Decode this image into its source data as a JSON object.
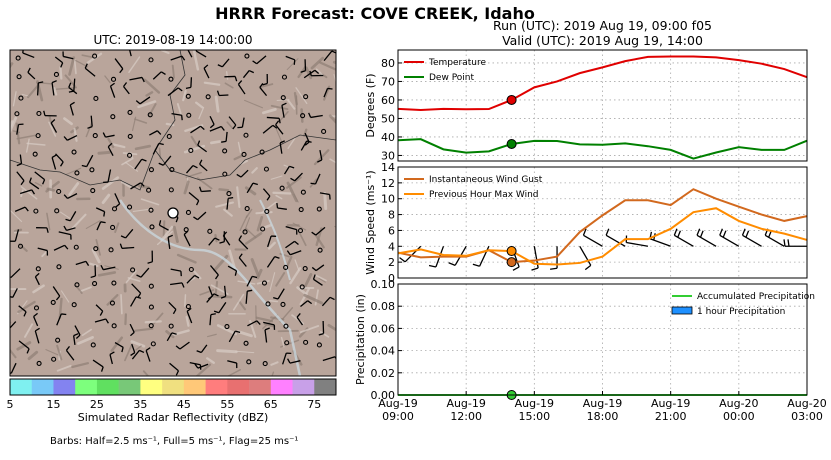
{
  "page": {
    "suptitle": "HRRR Forecast: COVE CREEK, Idaho",
    "run_line": "Run (UTC): 2019 Aug 19, 09:00 f05",
    "valid_line": "Valid (UTC): 2019 Aug 19, 14:00",
    "barbs_note": "Barbs: Half=2.5 ms⁻¹, Full=5 ms⁻¹, Flag=25 ms⁻¹"
  },
  "map": {
    "title": "UTC: 2019-08-19 14:00:00",
    "colorbar_label": "Simulated Radar Reflectivity (dBZ)",
    "colorbar_ticks": [
      "5",
      "15",
      "25",
      "35",
      "45",
      "55",
      "65",
      "75"
    ],
    "colorbar_colors": [
      "#7ff0f0",
      "#79c9f7",
      "#8383f0",
      "#7dff7d",
      "#60e060",
      "#78c878",
      "#ffff80",
      "#f0e080",
      "#ffc878",
      "#ff7d7d",
      "#e87070",
      "#dd7d7d",
      "#ff80ff",
      "#c8a0e8",
      "#808080"
    ],
    "colors": {
      "terrain": "#b9a59b",
      "terrain_light": "#d9cdc6",
      "station": "#ffffff"
    }
  },
  "chart_data": [
    {
      "type": "line",
      "ylabel": "Degrees (F)",
      "ylim": [
        27,
        87
      ],
      "yticks": [
        "30",
        "40",
        "50",
        "60",
        "70",
        "80"
      ],
      "xticklabels": [
        [
          "Aug-19",
          "09:00"
        ],
        [
          "Aug-19",
          "12:00"
        ],
        [
          "Aug-19",
          "15:00"
        ],
        [
          "Aug-19",
          "18:00"
        ],
        [
          "Aug-19",
          "21:00"
        ],
        [
          "Aug-20",
          "00:00"
        ],
        [
          "Aug-20",
          "03:00"
        ]
      ],
      "x_hours": [
        0,
        1,
        2,
        3,
        4,
        5,
        6,
        7,
        8,
        9,
        10,
        11,
        12,
        13,
        14,
        15,
        16,
        17,
        18
      ],
      "grid": true,
      "legend_position": "top-left",
      "series": [
        {
          "name": "Temperature",
          "color": "#e00000",
          "values": [
            55.2,
            54.6,
            55.2,
            55.0,
            55.1,
            60.0,
            66.8,
            70.0,
            74.5,
            77.6,
            81.0,
            83.3,
            83.5,
            83.5,
            83.0,
            81.5,
            79.6,
            76.7,
            72.3
          ],
          "marker_hour": 5,
          "marker_value": 60.0
        },
        {
          "name": "Dew Point",
          "color": "#008000",
          "values": [
            38.2,
            38.8,
            33.3,
            31.5,
            32.2,
            36.2,
            37.9,
            37.8,
            36.0,
            35.8,
            36.5,
            35.0,
            33.0,
            28.3,
            31.6,
            34.5,
            33.0,
            33.0,
            38.0
          ],
          "marker_hour": 5,
          "marker_value": 36.2
        }
      ]
    },
    {
      "type": "line",
      "ylabel": "Wind Speed (ms⁻¹)",
      "ylim": [
        0,
        14
      ],
      "yticks": [
        "0",
        "2",
        "4",
        "6",
        "8",
        "10",
        "12",
        "14"
      ],
      "x_hours": [
        0,
        1,
        2,
        3,
        4,
        5,
        6,
        7,
        8,
        9,
        10,
        11,
        12,
        13,
        14,
        15,
        16,
        17,
        18
      ],
      "grid": true,
      "legend_position": "top-left",
      "series": [
        {
          "name": "Instantaneous Wind Gust",
          "color": "#d2691e",
          "values": [
            3.2,
            2.6,
            2.7,
            2.7,
            3.5,
            2.0,
            2.2,
            2.7,
            5.8,
            7.9,
            9.8,
            9.8,
            9.2,
            11.2,
            10.0,
            9.0,
            8.0,
            7.2,
            7.8
          ],
          "marker_hour": 5,
          "marker_value": 2.0
        },
        {
          "name": "Previous Hour Max Wind",
          "color": "#ff8c00",
          "values": [
            3.1,
            3.6,
            2.9,
            2.8,
            3.5,
            3.4,
            1.8,
            1.7,
            1.9,
            2.7,
            4.9,
            4.9,
            6.2,
            8.3,
            8.8,
            7.2,
            6.2,
            5.6,
            4.8
          ],
          "marker_hour": 5,
          "marker_value": 3.4
        }
      ],
      "barbs": [
        {
          "hour": 1,
          "dir": 225,
          "speed": 5
        },
        {
          "hour": 2,
          "dir": 200,
          "speed": 5
        },
        {
          "hour": 3,
          "dir": 210,
          "speed": 5
        },
        {
          "hour": 4,
          "dir": 205,
          "speed": 5
        },
        {
          "hour": 5,
          "dir": 160,
          "speed": 5
        },
        {
          "hour": 6,
          "dir": 170,
          "speed": 5
        },
        {
          "hour": 7,
          "dir": 180,
          "speed": 5
        },
        {
          "hour": 8,
          "dir": 150,
          "speed": 5
        },
        {
          "hour": 9,
          "dir": 300,
          "speed": 5
        },
        {
          "hour": 10,
          "dir": 300,
          "speed": 5
        },
        {
          "hour": 11,
          "dir": 280,
          "speed": 5
        },
        {
          "hour": 12,
          "dir": 290,
          "speed": 10
        },
        {
          "hour": 13,
          "dir": 300,
          "speed": 10
        },
        {
          "hour": 14,
          "dir": 300,
          "speed": 10
        },
        {
          "hour": 15,
          "dir": 300,
          "speed": 10
        },
        {
          "hour": 16,
          "dir": 300,
          "speed": 10
        },
        {
          "hour": 17,
          "dir": 300,
          "speed": 10
        },
        {
          "hour": 18,
          "dir": 270,
          "speed": 10
        }
      ]
    },
    {
      "type": "bar",
      "ylabel": "Precipitation (in)",
      "ylim": [
        0,
        0.1
      ],
      "yticks": [
        "0.00",
        "0.02",
        "0.04",
        "0.06",
        "0.08",
        "0.10"
      ],
      "x_hours": [
        0,
        1,
        2,
        3,
        4,
        5,
        6,
        7,
        8,
        9,
        10,
        11,
        12,
        13,
        14,
        15,
        16,
        17,
        18
      ],
      "grid": true,
      "legend_position": "top-right",
      "series": [
        {
          "name": "Accumulated Precipitation",
          "color": "#32cd32",
          "values": [
            0,
            0,
            0,
            0,
            0,
            0,
            0,
            0,
            0,
            0,
            0,
            0,
            0,
            0,
            0,
            0,
            0,
            0,
            0
          ],
          "marker_hour": 5,
          "marker_value": 0
        },
        {
          "name": "1 hour Precipitation",
          "color": "#1e90ff",
          "values": [
            0,
            0,
            0,
            0,
            0,
            0,
            0,
            0,
            0,
            0,
            0,
            0,
            0,
            0,
            0,
            0,
            0,
            0,
            0
          ]
        }
      ]
    }
  ]
}
